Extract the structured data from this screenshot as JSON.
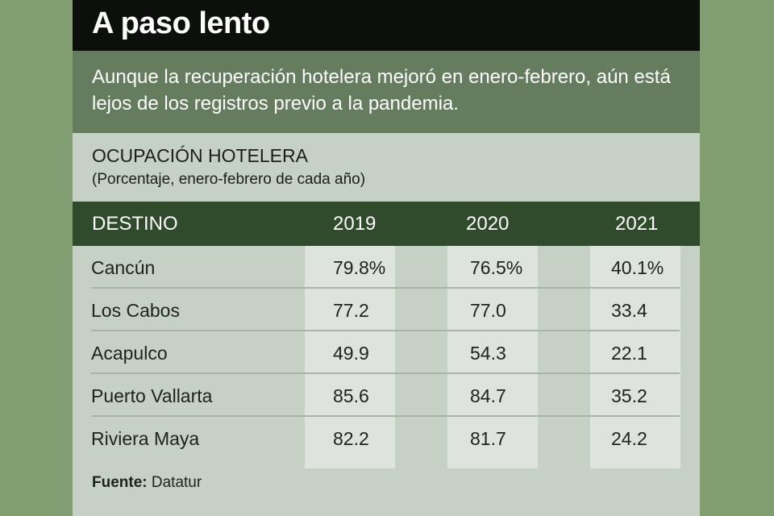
{
  "title": "A paso lento",
  "subtitle": "Aunque la recuperación hotelera mejoró en enero-febrero, aún está lejos de los registros previo a la pandemia.",
  "section_title": "OCUPACIÓN HOTELERA",
  "section_subtitle": "(Porcentaje, enero-febrero de cada año)",
  "source_label": "Fuente:",
  "source_value": "Datatur",
  "colors": {
    "background": "#819e71",
    "title_bar": "#0d0f0d",
    "subtitle_band": "#657d5e",
    "header": "#2f4b2b",
    "panel": "#c6d1c6",
    "column_highlight": "#dee3dd"
  },
  "chart_data": {
    "type": "table",
    "title": "OCUPACIÓN HOTELERA",
    "columns": [
      "DESTINO",
      "2019",
      "2020",
      "2021"
    ],
    "rows": [
      [
        "Cancún",
        "79.8%",
        "76.5%",
        "40.1%"
      ],
      [
        "Los Cabos",
        "77.2",
        "77.0",
        "33.4"
      ],
      [
        "Acapulco",
        "49.9",
        "54.3",
        "22.1"
      ],
      [
        "Puerto Vallarta",
        "85.6",
        "84.7",
        "35.2"
      ],
      [
        "Riviera Maya",
        "82.2",
        "81.7",
        "24.2"
      ]
    ]
  }
}
